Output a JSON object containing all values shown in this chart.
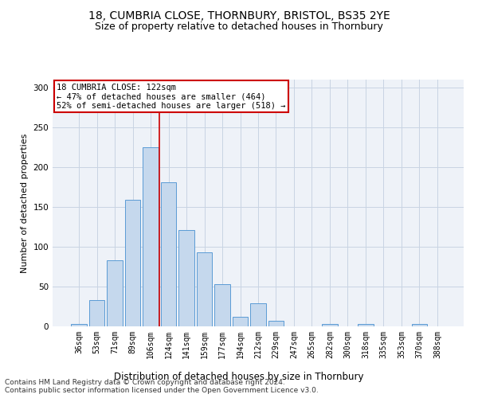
{
  "title": "18, CUMBRIA CLOSE, THORNBURY, BRISTOL, BS35 2YE",
  "subtitle": "Size of property relative to detached houses in Thornbury",
  "xlabel": "Distribution of detached houses by size in Thornbury",
  "ylabel": "Number of detached properties",
  "categories": [
    "36sqm",
    "53sqm",
    "71sqm",
    "89sqm",
    "106sqm",
    "124sqm",
    "141sqm",
    "159sqm",
    "177sqm",
    "194sqm",
    "212sqm",
    "229sqm",
    "247sqm",
    "265sqm",
    "282sqm",
    "300sqm",
    "318sqm",
    "335sqm",
    "353sqm",
    "370sqm",
    "388sqm"
  ],
  "values": [
    3,
    33,
    83,
    159,
    225,
    181,
    121,
    93,
    53,
    12,
    29,
    7,
    0,
    0,
    3,
    0,
    3,
    0,
    0,
    3,
    0
  ],
  "bar_color": "#c5d8ed",
  "bar_edge_color": "#5b9bd5",
  "annotation_text": "18 CUMBRIA CLOSE: 122sqm\n← 47% of detached houses are smaller (464)\n52% of semi-detached houses are larger (518) →",
  "annotation_box_color": "#ffffff",
  "annotation_box_edge": "#cc0000",
  "vline_color": "#cc0000",
  "vline_x": 4.5,
  "grid_color": "#c8d4e3",
  "background_color": "#eef2f8",
  "footer_line1": "Contains HM Land Registry data © Crown copyright and database right 2024.",
  "footer_line2": "Contains public sector information licensed under the Open Government Licence v3.0.",
  "ylim": [
    0,
    310
  ],
  "yticks": [
    0,
    50,
    100,
    150,
    200,
    250,
    300
  ],
  "title_fontsize": 10,
  "subtitle_fontsize": 9,
  "xlabel_fontsize": 8.5,
  "ylabel_fontsize": 8,
  "tick_fontsize": 7,
  "annotation_fontsize": 7.5,
  "footer_fontsize": 6.5
}
